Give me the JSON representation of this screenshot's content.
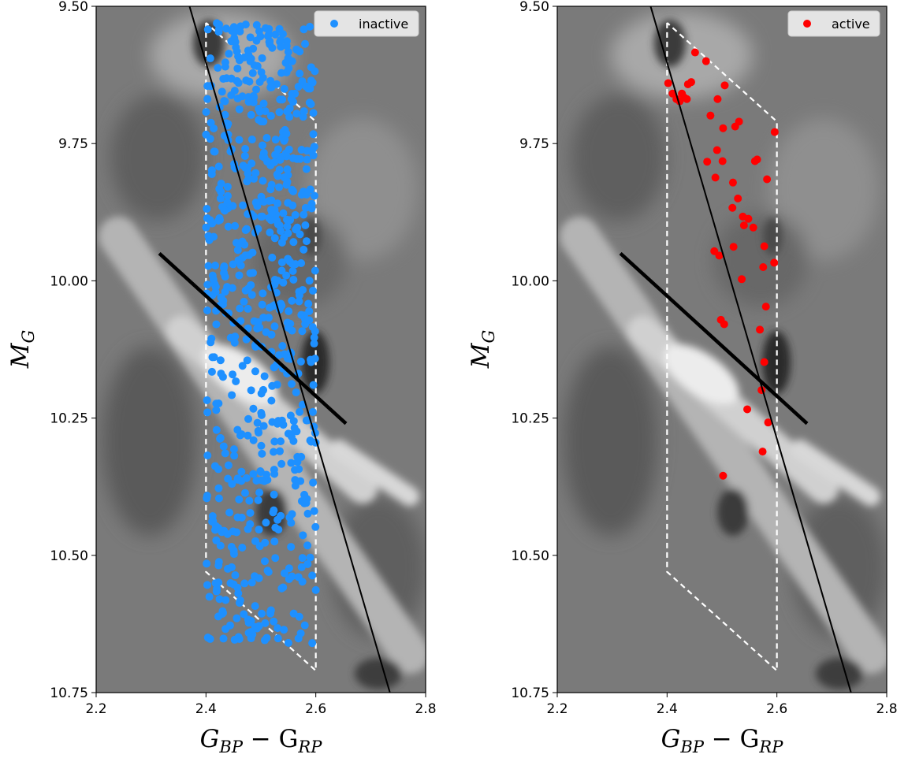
{
  "chart_data": [
    {
      "type": "scatter",
      "xlim": [
        2.2,
        2.8
      ],
      "ylim": [
        9.5,
        10.75
      ],
      "y_inverted": true,
      "xticks": [
        2.2,
        2.4,
        2.6,
        2.8
      ],
      "xtick_labels": [
        "2.2",
        "2.4",
        "2.6",
        "2.8"
      ],
      "yticks": [
        9.5,
        9.75,
        10.0,
        10.25,
        10.5,
        10.75
      ],
      "ytick_labels": [
        "9.50",
        "9.75",
        "10.00",
        "10.25",
        "10.50",
        "10.75"
      ],
      "xlabel_main": "G",
      "xlabel_sub1": "BP",
      "xlabel_mid": " − G",
      "xlabel_sub2": "RP",
      "ylabel_main": "M",
      "ylabel_sub": "G",
      "legend": {
        "label": "inactive",
        "color": "#1e90ff",
        "placement": "top-right"
      },
      "background": "grayscale density map",
      "boundary_box": {
        "x": [
          2.4,
          2.4,
          2.6,
          2.6,
          2.4
        ],
        "y": [
          9.53,
          10.53,
          10.71,
          9.71,
          9.53
        ],
        "color": "#ffffff",
        "style": "dashed"
      },
      "lines": [
        {
          "name": "steep",
          "x": [
            2.37,
            2.735
          ],
          "y": [
            9.5,
            10.75
          ],
          "width": "thin"
        },
        {
          "name": "shallow",
          "x": [
            2.315,
            2.655
          ],
          "y": [
            9.95,
            10.26
          ],
          "width": "thick"
        }
      ],
      "series": [
        {
          "name": "inactive",
          "color": "#1e90ff",
          "marker_count": 700,
          "x_range": [
            2.4,
            2.6
          ],
          "y_range": [
            9.53,
            10.66
          ]
        }
      ]
    },
    {
      "type": "scatter",
      "xlim": [
        2.2,
        2.8
      ],
      "ylim": [
        9.5,
        10.75
      ],
      "y_inverted": true,
      "xticks": [
        2.2,
        2.4,
        2.6,
        2.8
      ],
      "xtick_labels": [
        "2.2",
        "2.4",
        "2.6",
        "2.8"
      ],
      "yticks": [
        9.5,
        9.75,
        10.0,
        10.25,
        10.5,
        10.75
      ],
      "ytick_labels": [
        "9.50",
        "9.75",
        "10.00",
        "10.25",
        "10.50",
        "10.75"
      ],
      "xlabel_main": "G",
      "xlabel_sub1": "BP",
      "xlabel_mid": " − G",
      "xlabel_sub2": "RP",
      "ylabel_main": "M",
      "ylabel_sub": "G",
      "legend": {
        "label": "active",
        "color": "#ff0000",
        "placement": "top-right"
      },
      "background": "grayscale density map",
      "boundary_box": {
        "x": [
          2.4,
          2.4,
          2.6,
          2.6,
          2.4
        ],
        "y": [
          9.53,
          10.53,
          10.71,
          9.71,
          9.53
        ],
        "color": "#ffffff",
        "style": "dashed"
      },
      "lines": [
        {
          "name": "steep",
          "x": [
            2.37,
            2.735
          ],
          "y": [
            9.5,
            10.75
          ],
          "width": "thin"
        },
        {
          "name": "shallow",
          "x": [
            2.315,
            2.655
          ],
          "y": [
            9.95,
            10.26
          ],
          "width": "thick"
        }
      ],
      "series": [
        {
          "name": "active",
          "color": "#ff0000",
          "x": [
            2.451,
            2.471,
            2.402,
            2.444,
            2.438,
            2.427,
            2.417,
            2.431,
            2.41,
            2.423,
            2.436,
            2.492,
            2.505,
            2.479,
            2.531,
            2.524,
            2.502,
            2.596,
            2.491,
            2.473,
            2.501,
            2.564,
            2.56,
            2.488,
            2.582,
            2.52,
            2.529,
            2.519,
            2.538,
            2.548,
            2.54,
            2.557,
            2.521,
            2.486,
            2.495,
            2.577,
            2.595,
            2.575,
            2.536,
            2.58,
            2.498,
            2.504,
            2.569,
            2.577,
            2.572,
            2.546,
            2.584,
            2.574,
            2.502
          ],
          "y": [
            9.584,
            9.6,
            9.64,
            9.638,
            9.642,
            9.659,
            9.669,
            9.666,
            9.659,
            9.673,
            9.669,
            9.669,
            9.644,
            9.699,
            9.71,
            9.719,
            9.722,
            9.729,
            9.762,
            9.783,
            9.782,
            9.779,
            9.782,
            9.812,
            9.815,
            9.821,
            9.85,
            9.867,
            9.883,
            9.887,
            9.899,
            9.903,
            9.938,
            9.946,
            9.954,
            9.937,
            9.967,
            9.975,
            9.997,
            10.047,
            10.071,
            10.079,
            10.089,
            10.148,
            10.199,
            10.234,
            10.258,
            10.311,
            10.355
          ]
        }
      ]
    }
  ]
}
